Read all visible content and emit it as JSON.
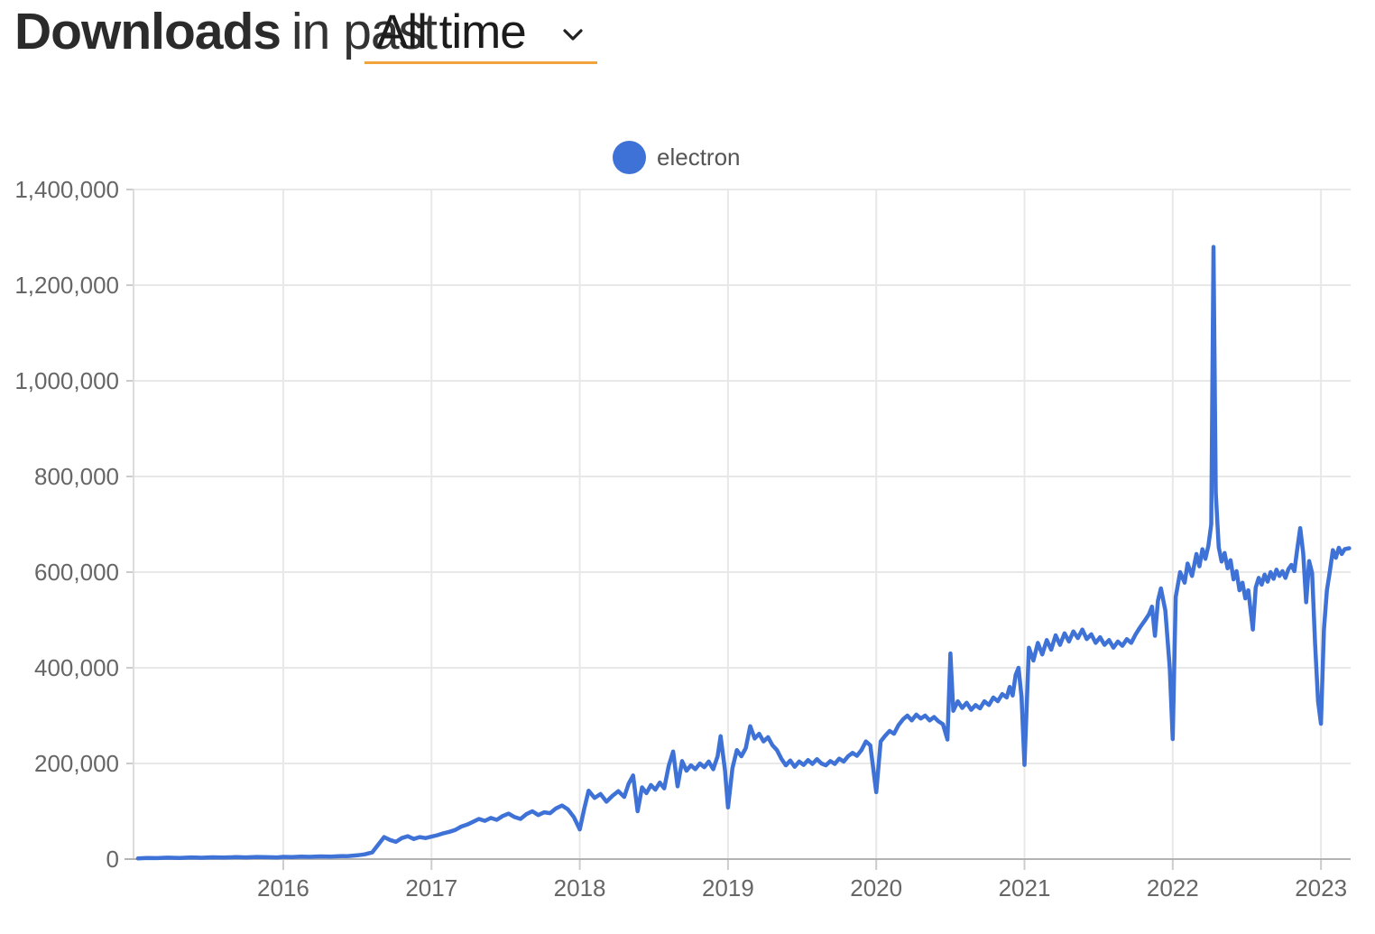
{
  "header": {
    "title_bold": "Downloads",
    "title_rest": "in past",
    "range_selector": {
      "value": "All time",
      "accent_color": "#F0A43C"
    }
  },
  "legend": {
    "items": [
      {
        "label": "electron",
        "color": "#3E72D6"
      }
    ]
  },
  "chart_data": {
    "type": "line",
    "title": "",
    "xlabel": "",
    "ylabel": "",
    "grid": true,
    "legend_position": "top-center",
    "x_range": [
      2014.99,
      2023.2
    ],
    "y_range": [
      0,
      1400000
    ],
    "x_ticks": [
      {
        "year": 2016,
        "label": "2016"
      },
      {
        "year": 2017,
        "label": "2017"
      },
      {
        "year": 2018,
        "label": "2018"
      },
      {
        "year": 2019,
        "label": "2019"
      },
      {
        "year": 2020,
        "label": "2020"
      },
      {
        "year": 2021,
        "label": "2021"
      },
      {
        "year": 2022,
        "label": "2022"
      },
      {
        "year": 2023,
        "label": "2023"
      }
    ],
    "y_ticks": [
      {
        "value": 0,
        "label": "0"
      },
      {
        "value": 200000,
        "label": "200,000"
      },
      {
        "value": 400000,
        "label": "400,000"
      },
      {
        "value": 600000,
        "label": "600,000"
      },
      {
        "value": 800000,
        "label": "800,000"
      },
      {
        "value": 1000000,
        "label": "1,000,000"
      },
      {
        "value": 1200000,
        "label": "1,200,000"
      },
      {
        "value": 1400000,
        "label": "1,400,000"
      }
    ],
    "series": [
      {
        "name": "electron",
        "color": "#3E72D6",
        "points": [
          [
            2015.02,
            1500
          ],
          [
            2015.08,
            2500
          ],
          [
            2015.15,
            2000
          ],
          [
            2015.22,
            3000
          ],
          [
            2015.3,
            2500
          ],
          [
            2015.38,
            3500
          ],
          [
            2015.45,
            2800
          ],
          [
            2015.52,
            3800
          ],
          [
            2015.6,
            3200
          ],
          [
            2015.68,
            4200
          ],
          [
            2015.75,
            3600
          ],
          [
            2015.82,
            4500
          ],
          [
            2015.9,
            4000
          ],
          [
            2015.96,
            3500
          ],
          [
            2016.0,
            4800
          ],
          [
            2016.06,
            4200
          ],
          [
            2016.12,
            5200
          ],
          [
            2016.18,
            4800
          ],
          [
            2016.25,
            5600
          ],
          [
            2016.32,
            5200
          ],
          [
            2016.38,
            6000
          ],
          [
            2016.44,
            6500
          ],
          [
            2016.5,
            8000
          ],
          [
            2016.55,
            10000
          ],
          [
            2016.6,
            14000
          ],
          [
            2016.64,
            30000
          ],
          [
            2016.68,
            46000
          ],
          [
            2016.72,
            40000
          ],
          [
            2016.76,
            36000
          ],
          [
            2016.8,
            44000
          ],
          [
            2016.84,
            48000
          ],
          [
            2016.88,
            42000
          ],
          [
            2016.92,
            46000
          ],
          [
            2016.96,
            44000
          ],
          [
            2017.0,
            47000
          ],
          [
            2017.04,
            50000
          ],
          [
            2017.08,
            54000
          ],
          [
            2017.12,
            57000
          ],
          [
            2017.16,
            61000
          ],
          [
            2017.2,
            68000
          ],
          [
            2017.24,
            72000
          ],
          [
            2017.28,
            78000
          ],
          [
            2017.32,
            84000
          ],
          [
            2017.36,
            80000
          ],
          [
            2017.4,
            86000
          ],
          [
            2017.44,
            82000
          ],
          [
            2017.48,
            90000
          ],
          [
            2017.52,
            95000
          ],
          [
            2017.56,
            88000
          ],
          [
            2017.6,
            84000
          ],
          [
            2017.64,
            94000
          ],
          [
            2017.68,
            100000
          ],
          [
            2017.72,
            92000
          ],
          [
            2017.76,
            98000
          ],
          [
            2017.8,
            96000
          ],
          [
            2017.84,
            106000
          ],
          [
            2017.88,
            112000
          ],
          [
            2017.92,
            104000
          ],
          [
            2017.96,
            88000
          ],
          [
            2018.0,
            62000
          ],
          [
            2018.03,
            105000
          ],
          [
            2018.06,
            143000
          ],
          [
            2018.1,
            128000
          ],
          [
            2018.14,
            136000
          ],
          [
            2018.18,
            120000
          ],
          [
            2018.22,
            132000
          ],
          [
            2018.26,
            142000
          ],
          [
            2018.3,
            130000
          ],
          [
            2018.33,
            158000
          ],
          [
            2018.36,
            175000
          ],
          [
            2018.39,
            100000
          ],
          [
            2018.42,
            150000
          ],
          [
            2018.45,
            138000
          ],
          [
            2018.48,
            155000
          ],
          [
            2018.51,
            145000
          ],
          [
            2018.54,
            160000
          ],
          [
            2018.57,
            148000
          ],
          [
            2018.6,
            195000
          ],
          [
            2018.63,
            225000
          ],
          [
            2018.66,
            152000
          ],
          [
            2018.69,
            205000
          ],
          [
            2018.72,
            185000
          ],
          [
            2018.75,
            196000
          ],
          [
            2018.78,
            188000
          ],
          [
            2018.81,
            200000
          ],
          [
            2018.84,
            192000
          ],
          [
            2018.87,
            204000
          ],
          [
            2018.9,
            188000
          ],
          [
            2018.93,
            215000
          ],
          [
            2018.95,
            257000
          ],
          [
            2018.98,
            185000
          ],
          [
            2019.0,
            108000
          ],
          [
            2019.03,
            190000
          ],
          [
            2019.06,
            228000
          ],
          [
            2019.09,
            215000
          ],
          [
            2019.12,
            232000
          ],
          [
            2019.15,
            278000
          ],
          [
            2019.18,
            252000
          ],
          [
            2019.21,
            262000
          ],
          [
            2019.24,
            246000
          ],
          [
            2019.27,
            255000
          ],
          [
            2019.3,
            238000
          ],
          [
            2019.33,
            228000
          ],
          [
            2019.36,
            210000
          ],
          [
            2019.39,
            196000
          ],
          [
            2019.42,
            206000
          ],
          [
            2019.45,
            193000
          ],
          [
            2019.48,
            204000
          ],
          [
            2019.51,
            197000
          ],
          [
            2019.54,
            207000
          ],
          [
            2019.57,
            199000
          ],
          [
            2019.6,
            209000
          ],
          [
            2019.63,
            200000
          ],
          [
            2019.66,
            196000
          ],
          [
            2019.69,
            205000
          ],
          [
            2019.72,
            199000
          ],
          [
            2019.75,
            210000
          ],
          [
            2019.78,
            204000
          ],
          [
            2019.81,
            215000
          ],
          [
            2019.84,
            222000
          ],
          [
            2019.87,
            216000
          ],
          [
            2019.9,
            228000
          ],
          [
            2019.93,
            246000
          ],
          [
            2019.96,
            238000
          ],
          [
            2020.0,
            140000
          ],
          [
            2020.03,
            246000
          ],
          [
            2020.06,
            258000
          ],
          [
            2020.09,
            268000
          ],
          [
            2020.12,
            262000
          ],
          [
            2020.15,
            280000
          ],
          [
            2020.18,
            292000
          ],
          [
            2020.21,
            300000
          ],
          [
            2020.24,
            290000
          ],
          [
            2020.27,
            302000
          ],
          [
            2020.3,
            294000
          ],
          [
            2020.33,
            300000
          ],
          [
            2020.36,
            290000
          ],
          [
            2020.39,
            297000
          ],
          [
            2020.42,
            288000
          ],
          [
            2020.45,
            282000
          ],
          [
            2020.48,
            250000
          ],
          [
            2020.5,
            430000
          ],
          [
            2020.52,
            310000
          ],
          [
            2020.55,
            330000
          ],
          [
            2020.58,
            316000
          ],
          [
            2020.61,
            327000
          ],
          [
            2020.64,
            312000
          ],
          [
            2020.67,
            322000
          ],
          [
            2020.7,
            315000
          ],
          [
            2020.73,
            330000
          ],
          [
            2020.76,
            322000
          ],
          [
            2020.79,
            338000
          ],
          [
            2020.82,
            330000
          ],
          [
            2020.85,
            345000
          ],
          [
            2020.88,
            338000
          ],
          [
            2020.9,
            360000
          ],
          [
            2020.92,
            342000
          ],
          [
            2020.94,
            385000
          ],
          [
            2020.96,
            400000
          ],
          [
            2020.98,
            340000
          ],
          [
            2021.0,
            197000
          ],
          [
            2021.03,
            442000
          ],
          [
            2021.06,
            415000
          ],
          [
            2021.09,
            452000
          ],
          [
            2021.12,
            428000
          ],
          [
            2021.15,
            458000
          ],
          [
            2021.18,
            438000
          ],
          [
            2021.21,
            468000
          ],
          [
            2021.24,
            448000
          ],
          [
            2021.27,
            472000
          ],
          [
            2021.3,
            455000
          ],
          [
            2021.33,
            476000
          ],
          [
            2021.36,
            462000
          ],
          [
            2021.39,
            480000
          ],
          [
            2021.42,
            460000
          ],
          [
            2021.45,
            470000
          ],
          [
            2021.48,
            452000
          ],
          [
            2021.51,
            464000
          ],
          [
            2021.54,
            448000
          ],
          [
            2021.57,
            458000
          ],
          [
            2021.6,
            442000
          ],
          [
            2021.63,
            455000
          ],
          [
            2021.66,
            446000
          ],
          [
            2021.69,
            460000
          ],
          [
            2021.72,
            452000
          ],
          [
            2021.75,
            470000
          ],
          [
            2021.78,
            485000
          ],
          [
            2021.81,
            498000
          ],
          [
            2021.84,
            512000
          ],
          [
            2021.86,
            528000
          ],
          [
            2021.88,
            467000
          ],
          [
            2021.9,
            540000
          ],
          [
            2021.92,
            566000
          ],
          [
            2021.95,
            520000
          ],
          [
            2021.98,
            400000
          ],
          [
            2022.0,
            251000
          ],
          [
            2022.02,
            548000
          ],
          [
            2022.05,
            600000
          ],
          [
            2022.08,
            578000
          ],
          [
            2022.1,
            618000
          ],
          [
            2022.13,
            592000
          ],
          [
            2022.16,
            638000
          ],
          [
            2022.18,
            612000
          ],
          [
            2022.2,
            648000
          ],
          [
            2022.22,
            628000
          ],
          [
            2022.24,
            655000
          ],
          [
            2022.26,
            700000
          ],
          [
            2022.275,
            1280000
          ],
          [
            2022.29,
            766000
          ],
          [
            2022.31,
            652000
          ],
          [
            2022.33,
            622000
          ],
          [
            2022.35,
            640000
          ],
          [
            2022.37,
            608000
          ],
          [
            2022.39,
            625000
          ],
          [
            2022.41,
            585000
          ],
          [
            2022.43,
            602000
          ],
          [
            2022.45,
            562000
          ],
          [
            2022.47,
            578000
          ],
          [
            2022.49,
            545000
          ],
          [
            2022.51,
            562000
          ],
          [
            2022.54,
            480000
          ],
          [
            2022.56,
            568000
          ],
          [
            2022.58,
            588000
          ],
          [
            2022.6,
            574000
          ],
          [
            2022.62,
            595000
          ],
          [
            2022.64,
            580000
          ],
          [
            2022.66,
            600000
          ],
          [
            2022.68,
            586000
          ],
          [
            2022.7,
            605000
          ],
          [
            2022.72,
            592000
          ],
          [
            2022.74,
            602000
          ],
          [
            2022.76,
            588000
          ],
          [
            2022.78,
            606000
          ],
          [
            2022.8,
            615000
          ],
          [
            2022.82,
            602000
          ],
          [
            2022.84,
            648000
          ],
          [
            2022.86,
            692000
          ],
          [
            2022.88,
            640000
          ],
          [
            2022.9,
            537000
          ],
          [
            2022.92,
            623000
          ],
          [
            2022.94,
            598000
          ],
          [
            2022.96,
            450000
          ],
          [
            2022.98,
            330000
          ],
          [
            2023.0,
            283000
          ],
          [
            2023.02,
            480000
          ],
          [
            2023.04,
            562000
          ],
          [
            2023.06,
            602000
          ],
          [
            2023.08,
            646000
          ],
          [
            2023.1,
            630000
          ],
          [
            2023.12,
            651000
          ],
          [
            2023.14,
            638000
          ],
          [
            2023.16,
            648000
          ],
          [
            2023.19,
            650000
          ]
        ]
      }
    ],
    "style": {
      "grid_color": "#e8e8e8",
      "axis_line_color": "#b3b3b3",
      "left_axis_color": "#dcdcdc",
      "tick_color": "#cccccc",
      "tick_label_color": "#666666",
      "line_width": 4.5
    }
  }
}
